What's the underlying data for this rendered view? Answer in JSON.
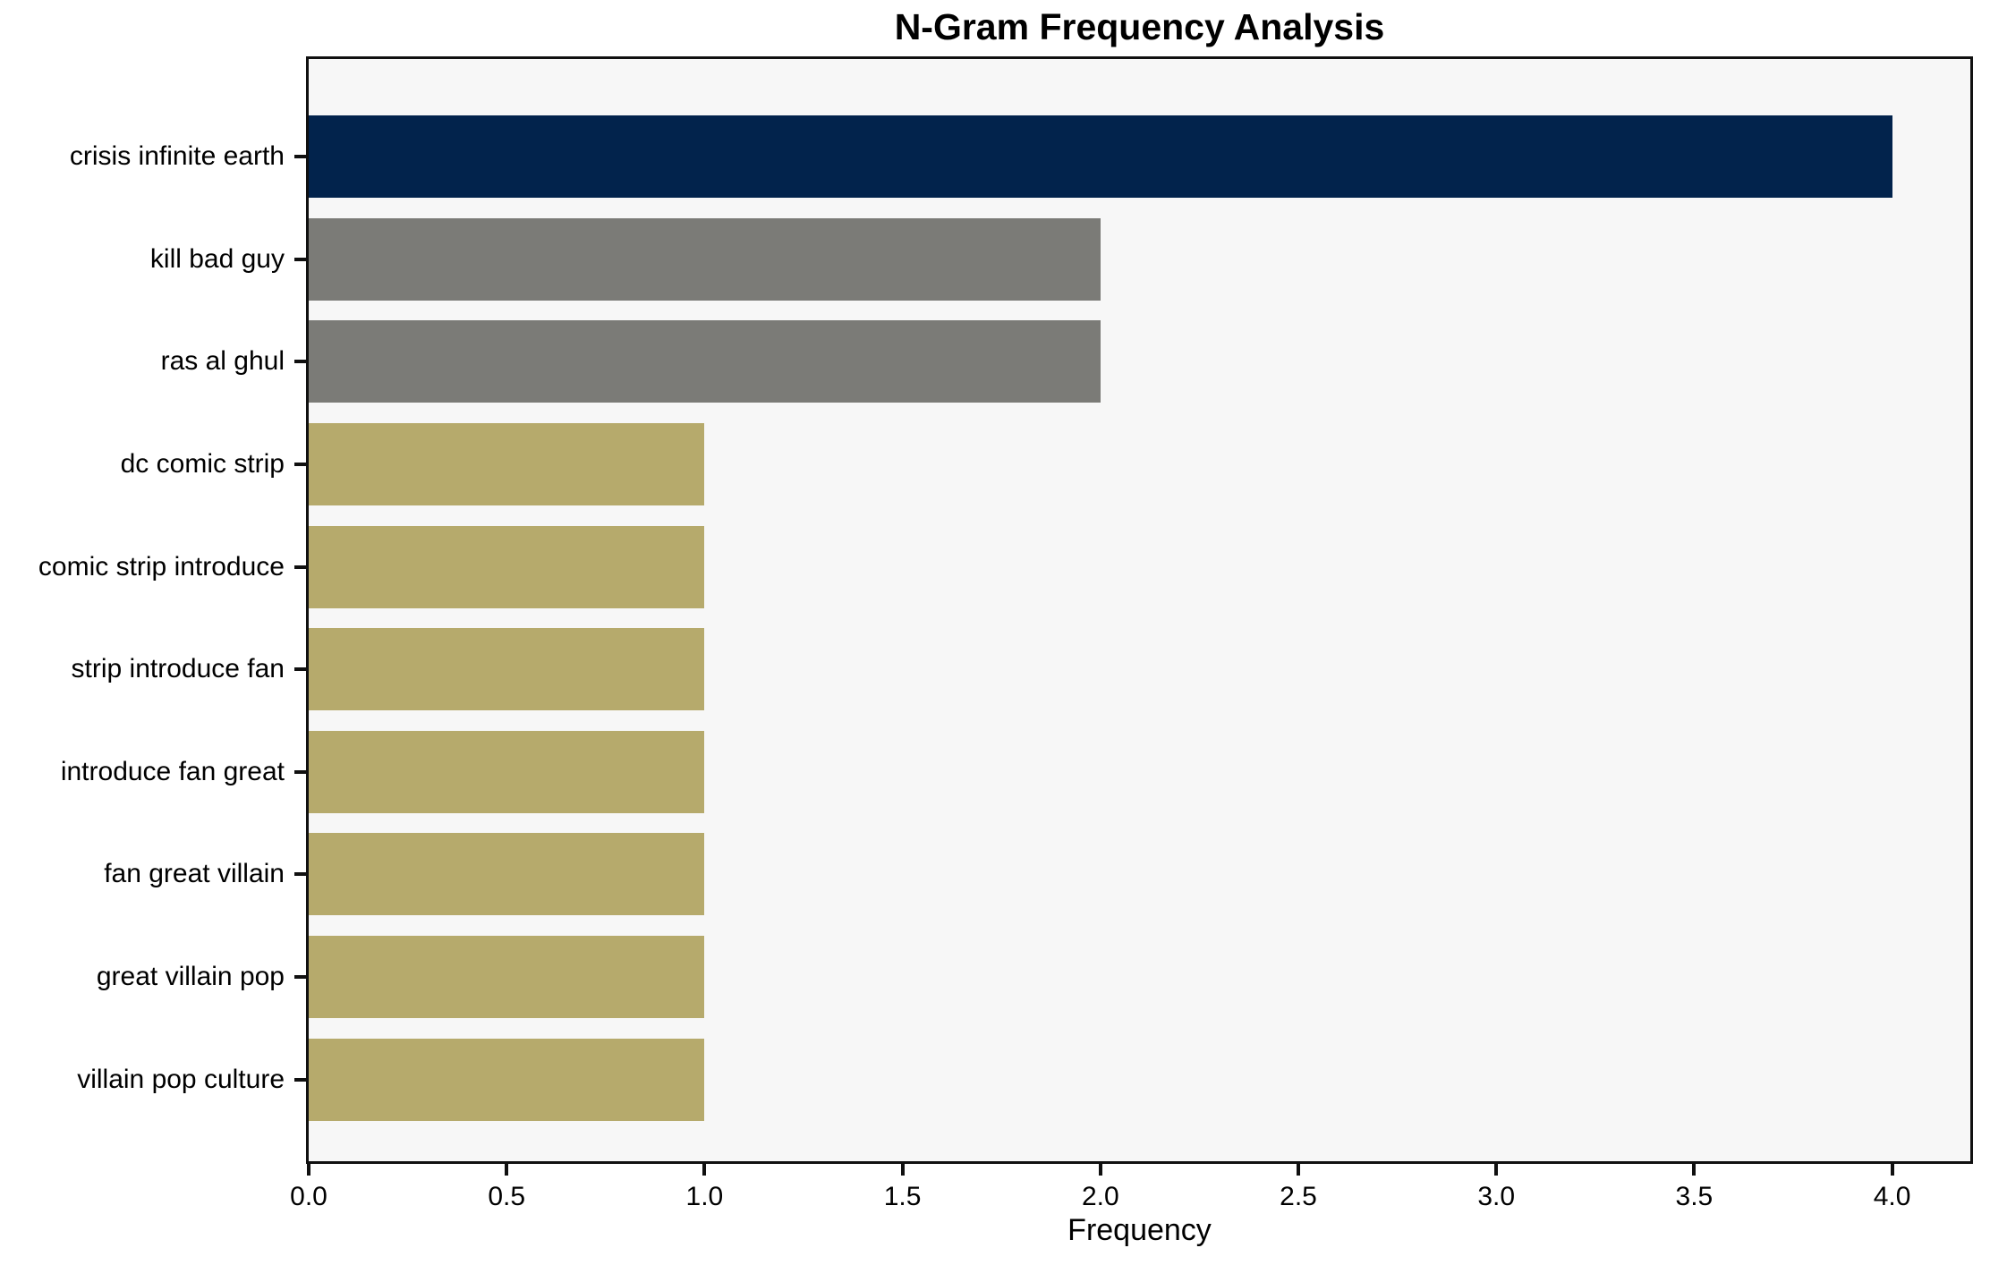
{
  "title": "N-Gram Frequency Analysis",
  "chart_data": {
    "type": "bar",
    "orientation": "horizontal",
    "title": "N-Gram Frequency Analysis",
    "xlabel": "Frequency",
    "ylabel": "",
    "categories": [
      "crisis infinite earth",
      "kill bad guy",
      "ras al ghul",
      "dc comic strip",
      "comic strip introduce",
      "strip introduce fan",
      "introduce fan great",
      "fan great villain",
      "great villain pop",
      "villain pop culture"
    ],
    "values": [
      4,
      2,
      2,
      1,
      1,
      1,
      1,
      1,
      1,
      1
    ],
    "bar_colors": [
      "#02234C",
      "#7B7B77",
      "#7B7B77",
      "#B6AA6C",
      "#B6AA6C",
      "#B6AA6C",
      "#B6AA6C",
      "#B6AA6C",
      "#B6AA6C",
      "#B6AA6C"
    ],
    "xlim": [
      0,
      4.2
    ],
    "xticks": [
      0,
      0.5,
      1,
      1.5,
      2,
      2.5,
      3,
      3.5,
      4
    ],
    "xtick_labels": [
      "0.0",
      "0.5",
      "1.0",
      "1.5",
      "2.0",
      "2.5",
      "3.0",
      "3.5",
      "4.0"
    ],
    "grid": false,
    "legend": null,
    "colors": {
      "plot_background": "#F7F7F7",
      "figure_background": "#FFFFFF",
      "axis": "#101010",
      "text": "#000000"
    }
  }
}
